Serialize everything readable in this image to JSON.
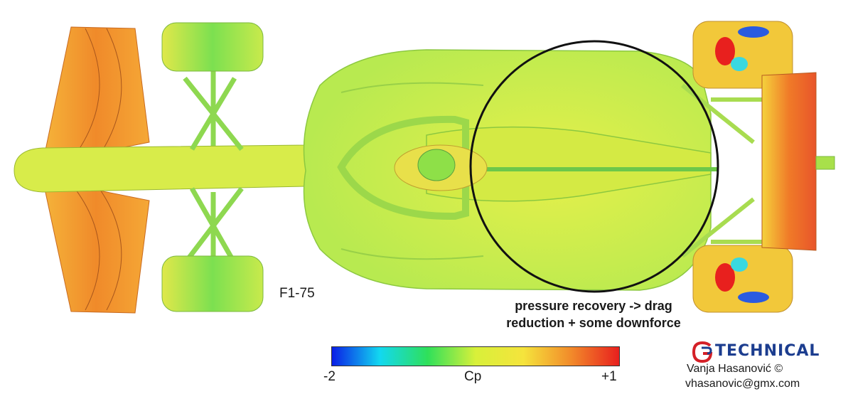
{
  "diagram": {
    "model_label": "F1-75",
    "annotation": {
      "line1": "pressure recovery -> drag",
      "line2": "reduction + some downforce"
    }
  },
  "colorbar": {
    "min_label": "-2",
    "mid_label": "Cp",
    "max_label": "+1",
    "gradient_colors": [
      "#0a1ee6",
      "#12d8f0",
      "#2fe05a",
      "#d8f03a",
      "#f5e43c",
      "#f28a2a",
      "#e8201e"
    ]
  },
  "credit": {
    "logo_text": "TECHNICAL",
    "author": "Vanja Hasanović ©",
    "email": "vhasanovic@gmx.com",
    "logo_red": "#d42027",
    "logo_blue": "#1c3d8f"
  },
  "colors": {
    "body": "#c9f05a",
    "high_pressure": "#f08a2a",
    "low_pressure": "#2a5be0",
    "circle_stroke": "#111111"
  }
}
